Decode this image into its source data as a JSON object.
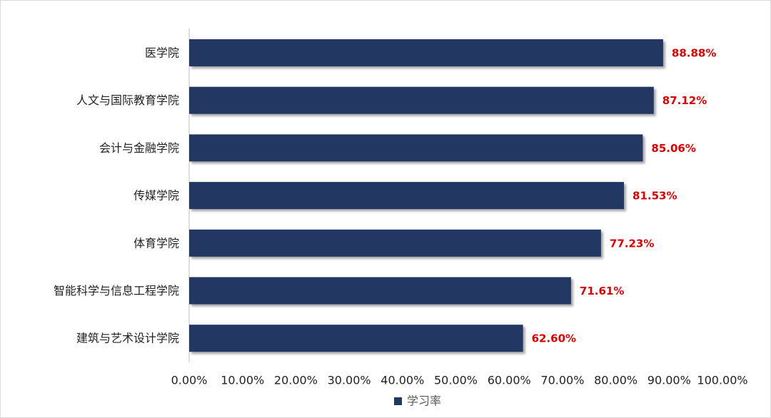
{
  "chart_data": {
    "type": "bar",
    "orientation": "horizontal",
    "categories": [
      "医学院",
      "人文与国际教育学院",
      "会计与金融学院",
      "传媒学院",
      "体育学院",
      "智能科学与信息工程学院",
      "建筑与艺术设计学院"
    ],
    "series": [
      {
        "name": "学习率",
        "color": "#203864",
        "values": [
          88.88,
          87.12,
          85.06,
          81.53,
          77.23,
          71.61,
          62.6
        ],
        "value_labels": [
          "88.88%",
          "87.12%",
          "85.06%",
          "81.53%",
          "77.23%",
          "71.61%",
          "62.60%"
        ]
      }
    ],
    "value_label_color": "#e00000",
    "xlim": [
      0,
      100
    ],
    "xticks": [
      {
        "value": 0,
        "label": "0.00%"
      },
      {
        "value": 10,
        "label": "10.00%"
      },
      {
        "value": 20,
        "label": "20.00%"
      },
      {
        "value": 30,
        "label": "30.00%"
      },
      {
        "value": 40,
        "label": "40.00%"
      },
      {
        "value": 50,
        "label": "50.00%"
      },
      {
        "value": 60,
        "label": "60.00%"
      },
      {
        "value": 70,
        "label": "70.00%"
      },
      {
        "value": 80,
        "label": "80.00%"
      },
      {
        "value": 90,
        "label": "90.00%"
      },
      {
        "value": 100,
        "label": "100.00%"
      }
    ],
    "grid": false,
    "legend": "bottom"
  }
}
